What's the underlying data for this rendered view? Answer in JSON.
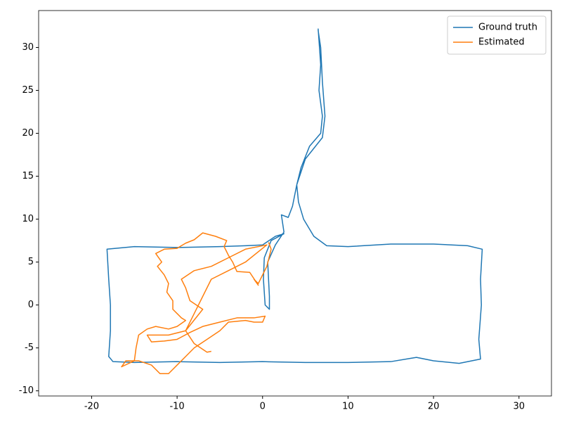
{
  "chart_data": {
    "type": "line",
    "series": [
      {
        "name": "Ground truth",
        "color": "#1f77b4",
        "x": [
          6.5,
          6.8,
          6.6,
          7,
          6.8,
          5.5,
          4.5,
          4,
          4.2,
          4.8,
          6,
          7.5,
          10,
          15,
          20,
          24,
          25.7,
          25.5,
          25.6,
          25.3,
          25.5,
          23,
          20,
          18,
          15,
          10,
          5,
          0,
          -5,
          -10,
          -15,
          -17.5,
          -18,
          -17.8,
          -17.8,
          -18,
          -18.2,
          -15,
          -10,
          -5,
          -2,
          0,
          1.5,
          2.5,
          1,
          0.2,
          0.1,
          0.3,
          0.8,
          0.8,
          0.6,
          1.5,
          2.5,
          2.2,
          3,
          3.5,
          4,
          5,
          7,
          7.3,
          7,
          6.8,
          6.5
        ],
        "values": [
          32.2,
          28,
          25,
          22,
          20,
          18.5,
          16,
          14,
          12,
          10,
          8,
          6.9,
          6.8,
          7.1,
          7.1,
          6.9,
          6.5,
          3,
          0,
          -4,
          -6.3,
          -6.8,
          -6.5,
          -6.1,
          -6.6,
          -6.7,
          -6.7,
          -6.6,
          -6.7,
          -6.6,
          -6.7,
          -6.6,
          -6,
          -3,
          0,
          3,
          6.5,
          6.8,
          6.7,
          6.8,
          6.9,
          7,
          8,
          8.3,
          7.5,
          5.5,
          3,
          0,
          -0.5,
          1,
          5,
          7,
          8.5,
          10.5,
          10.2,
          11.5,
          14,
          17,
          19.5,
          22,
          26,
          30,
          32
        ]
      },
      {
        "name": "Estimated",
        "color": "#ff7f0e",
        "x": [
          0.7,
          1,
          0.5,
          -0.5,
          -1,
          -0.5,
          -1.5,
          -3,
          -3.5,
          -4,
          -4.5,
          -4.2,
          -5.5,
          -7,
          -8,
          -9,
          -10,
          -11.5,
          -12.5,
          -11.8,
          -12.3,
          -11.5,
          -11,
          -11.2,
          -10.5,
          -10.5,
          -10,
          -9.5,
          -9,
          -10,
          -11,
          -12.5,
          -13.5,
          -14.5,
          -14.8,
          -15,
          -16.5,
          -16,
          -14.5,
          -13,
          -12,
          -11,
          -10,
          -9,
          -8,
          -6.5,
          -5,
          -4,
          -2,
          -1,
          0,
          0.3,
          -1,
          -3,
          -5,
          -7,
          -8.5,
          -10,
          -11.5,
          -13,
          -13.5,
          -11,
          -9,
          -7,
          -8.5,
          -9,
          -9.5,
          -8,
          -6,
          -4,
          -2,
          0.5,
          -2,
          -4,
          -6,
          -8,
          -9,
          -8,
          -6.5,
          -6
        ],
        "values": [
          7.3,
          6.5,
          4.5,
          2.5,
          3,
          2.3,
          3.8,
          3.9,
          5,
          5.8,
          6.8,
          7.5,
          8,
          8.4,
          7.6,
          7.2,
          6.6,
          6.5,
          6,
          5,
          4.5,
          3.5,
          2.5,
          1.5,
          0.5,
          -0.5,
          -1,
          -1.5,
          -1.8,
          -2.5,
          -2.8,
          -2.5,
          -2.8,
          -3.5,
          -5,
          -6.5,
          -7.2,
          -6.5,
          -6.5,
          -7,
          -8,
          -8,
          -7,
          -6,
          -5,
          -4,
          -3,
          -2,
          -1.8,
          -2,
          -2,
          -1.3,
          -1.5,
          -1.5,
          -2,
          -2.5,
          -3.2,
          -4,
          -4.2,
          -4.3,
          -3.5,
          -3.5,
          -3,
          -0.5,
          0.5,
          2,
          3,
          4,
          4.5,
          5.5,
          6.5,
          7,
          5,
          4,
          3,
          -1,
          -3,
          -4.5,
          -5.5,
          -5.4
        ]
      }
    ],
    "xlim": [
      -26.2,
      33.8
    ],
    "xticks": [
      -20,
      -10,
      0,
      10,
      20,
      30
    ],
    "ylim": [
      -10.6,
      34.3
    ],
    "yticks": [
      -10,
      -5,
      0,
      5,
      10,
      15,
      20,
      25,
      30
    ],
    "legend": "upper right"
  }
}
